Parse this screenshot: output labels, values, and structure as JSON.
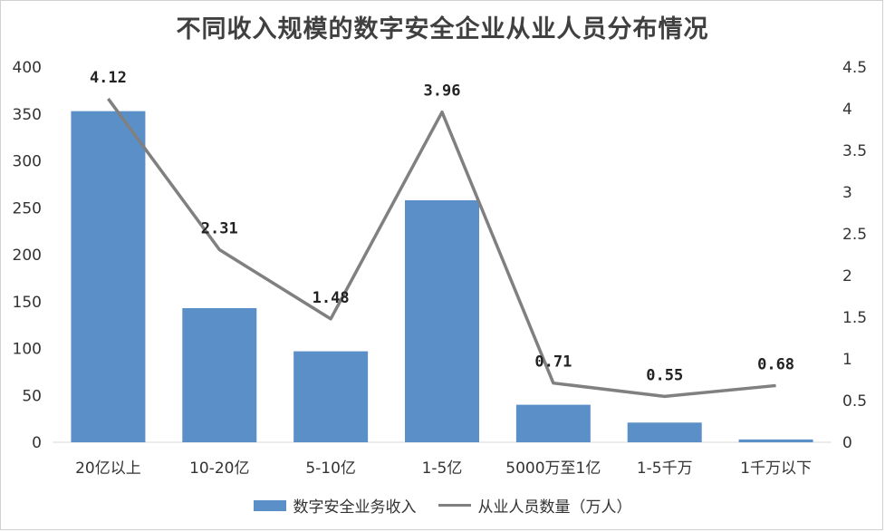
{
  "chart_data": {
    "type": "bar+line",
    "title": "不同收入规模的数字安全企业从业人员分布情况",
    "categories": [
      "20亿以上",
      "10-20亿",
      "5-10亿",
      "1-5亿",
      "5000万至1亿",
      "1-5千万",
      "1千万以下"
    ],
    "series": [
      {
        "name": "数字安全业务收入",
        "type": "bar",
        "axis": "left",
        "color": "#5b8fc8",
        "values": [
          353,
          143,
          97,
          258,
          40,
          21,
          3
        ]
      },
      {
        "name": "从业人员数量（万人）",
        "type": "line",
        "axis": "right",
        "color": "#808080",
        "values": [
          4.12,
          2.31,
          1.48,
          3.96,
          0.71,
          0.55,
          0.68
        ],
        "labels": [
          "4.12",
          "2.31",
          "1.48",
          "3.96",
          "0.71",
          "0.55",
          "0.68"
        ]
      }
    ],
    "y_left": {
      "min": 0,
      "max": 400,
      "ticks": [
        "0",
        "50",
        "100",
        "150",
        "200",
        "250",
        "300",
        "350",
        "400"
      ]
    },
    "y_right": {
      "min": 0,
      "max": 4.5,
      "ticks": [
        "0",
        "0.5",
        "1",
        "1.5",
        "2",
        "2.5",
        "3",
        "3.5",
        "4",
        "4.5"
      ]
    },
    "legend_position": "bottom",
    "grid": false
  }
}
